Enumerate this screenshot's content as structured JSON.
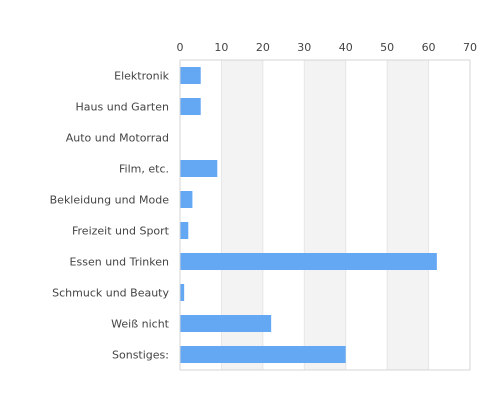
{
  "chart_data": {
    "type": "bar",
    "orientation": "horizontal",
    "categories": [
      "Elektronik",
      "Haus und Garten",
      "Auto und Motorrad",
      "Film, etc.",
      "Bekleidung und Mode",
      "Freizeit und Sport",
      "Essen und Trinken",
      "Schmuck und Beauty",
      "Weiß nicht",
      "Sonstiges:"
    ],
    "values": [
      5,
      5,
      0,
      9,
      3,
      2,
      62,
      1,
      22,
      40
    ],
    "xlim": [
      0,
      70
    ],
    "xticks": [
      "0",
      "10",
      "20",
      "30",
      "40",
      "50",
      "60",
      "70"
    ],
    "x_axis_position": "top",
    "grid": "alternating vertical bands",
    "bar_color": "#64a8f4",
    "band_color": "#f3f3f3",
    "axis_color": "#d6d6d6"
  }
}
